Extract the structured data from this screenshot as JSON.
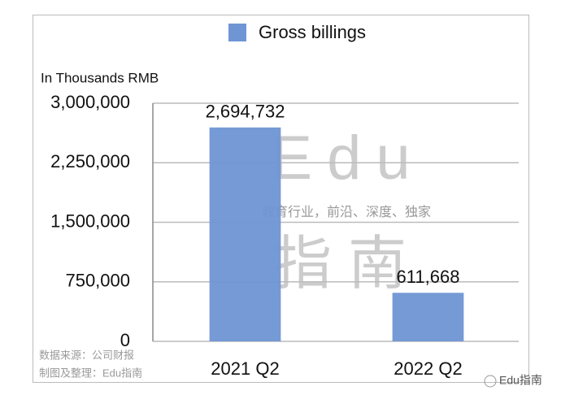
{
  "chart_data": {
    "type": "bar",
    "legend": "Gross billings",
    "y_label": "In Thousands RMB",
    "categories": [
      "2021 Q2",
      "2022 Q2"
    ],
    "values": [
      2694732,
      611668
    ],
    "value_labels": [
      "2,694,732",
      "611,668"
    ],
    "color": "#6f95d4",
    "ylim": [
      0,
      3000000
    ],
    "yticks": [
      0,
      {
        "value": 750000,
        "label": "750,000"
      },
      {
        "value": 1500000,
        "label": "1,500,000"
      },
      {
        "value": 2250000,
        "label": "2,250,000"
      },
      {
        "value": 3000000,
        "label": "3,000,000"
      }
    ],
    "grid": true,
    "watermark": [
      "Edu",
      "教育行业，前沿、深度、独家",
      "指南"
    ],
    "source_notes": [
      "数据来源：公司财报",
      "制图及整理：Edu指南"
    ],
    "brand": "Edu指南"
  }
}
